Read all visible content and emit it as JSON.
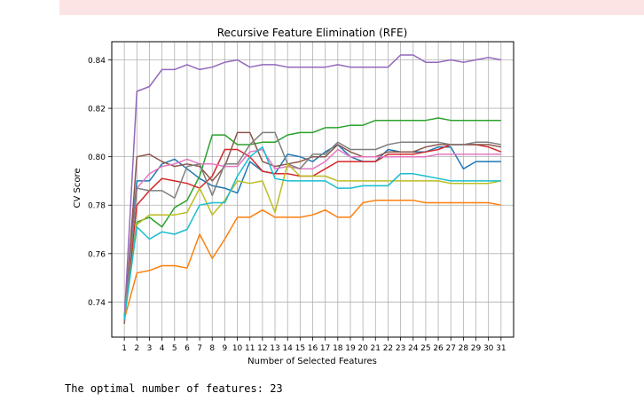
{
  "output": {
    "result_text": "The optimal number of features: 23"
  },
  "chart_data": {
    "type": "line",
    "title": "Recursive Feature Elimination (RFE)",
    "xlabel": "Number of Selected Features",
    "ylabel": "CV Score",
    "xlim": [
      0,
      32
    ],
    "ylim": [
      0.7255,
      0.8475
    ],
    "yticks": [
      0.74,
      0.76,
      0.78,
      0.8,
      0.82,
      0.84
    ],
    "ytick_labels": [
      "0.74",
      "0.76",
      "0.78",
      "0.80",
      "0.82",
      "0.84"
    ],
    "x": [
      1,
      2,
      3,
      4,
      5,
      6,
      7,
      8,
      9,
      10,
      11,
      12,
      13,
      14,
      15,
      16,
      17,
      18,
      19,
      20,
      21,
      22,
      23,
      24,
      25,
      26,
      27,
      28,
      29,
      30,
      31
    ],
    "grid": true,
    "legend": "none",
    "series": [
      {
        "color": "#1f77b4",
        "values": [
          0.734,
          0.79,
          0.79,
          0.797,
          0.799,
          0.795,
          0.791,
          0.788,
          0.787,
          0.785,
          0.798,
          0.794,
          0.793,
          0.801,
          0.8,
          0.798,
          0.802,
          0.805,
          0.8,
          0.798,
          0.798,
          0.803,
          0.802,
          0.802,
          0.802,
          0.804,
          0.804,
          0.795,
          0.798,
          0.798,
          0.798
        ]
      },
      {
        "color": "#ff7f0e",
        "values": [
          0.733,
          0.752,
          0.753,
          0.755,
          0.755,
          0.754,
          0.768,
          0.758,
          0.766,
          0.775,
          0.775,
          0.778,
          0.775,
          0.775,
          0.775,
          0.776,
          0.778,
          0.775,
          0.775,
          0.781,
          0.782,
          0.782,
          0.782,
          0.782,
          0.781,
          0.781,
          0.781,
          0.781,
          0.781,
          0.781,
          0.78
        ]
      },
      {
        "color": "#2ca02c",
        "values": [
          0.734,
          0.773,
          0.775,
          0.771,
          0.779,
          0.782,
          0.792,
          0.809,
          0.809,
          0.805,
          0.805,
          0.806,
          0.806,
          0.809,
          0.81,
          0.81,
          0.812,
          0.812,
          0.813,
          0.813,
          0.815,
          0.815,
          0.815,
          0.815,
          0.815,
          0.816,
          0.815,
          0.815,
          0.815,
          0.815,
          0.815
        ]
      },
      {
        "color": "#d62728",
        "values": [
          0.733,
          0.78,
          0.786,
          0.791,
          0.79,
          0.789,
          0.787,
          0.792,
          0.803,
          0.803,
          0.8,
          0.794,
          0.793,
          0.793,
          0.792,
          0.792,
          0.795,
          0.798,
          0.798,
          0.798,
          0.798,
          0.801,
          0.801,
          0.801,
          0.802,
          0.803,
          0.805,
          0.805,
          0.805,
          0.804,
          0.802
        ]
      },
      {
        "color": "#9467bd",
        "values": [
          0.733,
          0.827,
          0.829,
          0.836,
          0.836,
          0.838,
          0.836,
          0.837,
          0.839,
          0.84,
          0.837,
          0.838,
          0.838,
          0.837,
          0.837,
          0.837,
          0.837,
          0.838,
          0.837,
          0.837,
          0.837,
          0.837,
          0.842,
          0.842,
          0.839,
          0.839,
          0.84,
          0.839,
          0.84,
          0.841,
          0.84
        ]
      },
      {
        "color": "#8c564b",
        "values": [
          0.731,
          0.8,
          0.801,
          0.798,
          0.796,
          0.797,
          0.796,
          0.79,
          0.796,
          0.81,
          0.81,
          0.798,
          0.796,
          0.797,
          0.798,
          0.8,
          0.8,
          0.805,
          0.802,
          0.8,
          0.8,
          0.802,
          0.802,
          0.802,
          0.804,
          0.805,
          0.805,
          0.805,
          0.805,
          0.805,
          0.804
        ]
      },
      {
        "color": "#e377c2",
        "values": [
          0.733,
          0.787,
          0.793,
          0.796,
          0.797,
          0.799,
          0.797,
          0.797,
          0.796,
          0.796,
          0.802,
          0.803,
          0.795,
          0.796,
          0.795,
          0.795,
          0.798,
          0.803,
          0.8,
          0.8,
          0.8,
          0.8,
          0.8,
          0.8,
          0.8,
          0.801,
          0.801,
          0.801,
          0.801,
          0.801,
          0.801
        ]
      },
      {
        "color": "#7f7f7f",
        "values": [
          0.732,
          0.787,
          0.786,
          0.786,
          0.783,
          0.796,
          0.797,
          0.784,
          0.797,
          0.797,
          0.805,
          0.81,
          0.81,
          0.797,
          0.795,
          0.801,
          0.801,
          0.806,
          0.803,
          0.803,
          0.803,
          0.805,
          0.806,
          0.806,
          0.806,
          0.806,
          0.805,
          0.805,
          0.806,
          0.806,
          0.805
        ]
      },
      {
        "color": "#bcbd22",
        "values": [
          0.733,
          0.772,
          0.776,
          0.776,
          0.776,
          0.777,
          0.787,
          0.776,
          0.782,
          0.79,
          0.789,
          0.79,
          0.777,
          0.797,
          0.792,
          0.792,
          0.792,
          0.79,
          0.79,
          0.79,
          0.79,
          0.79,
          0.79,
          0.79,
          0.79,
          0.79,
          0.789,
          0.789,
          0.789,
          0.789,
          0.79
        ]
      },
      {
        "color": "#17becf",
        "values": [
          0.733,
          0.771,
          0.766,
          0.769,
          0.768,
          0.77,
          0.78,
          0.781,
          0.781,
          0.792,
          0.8,
          0.804,
          0.791,
          0.79,
          0.79,
          0.79,
          0.79,
          0.787,
          0.787,
          0.788,
          0.788,
          0.788,
          0.793,
          0.793,
          0.792,
          0.791,
          0.79,
          0.79,
          0.79,
          0.79,
          0.79
        ]
      }
    ]
  }
}
